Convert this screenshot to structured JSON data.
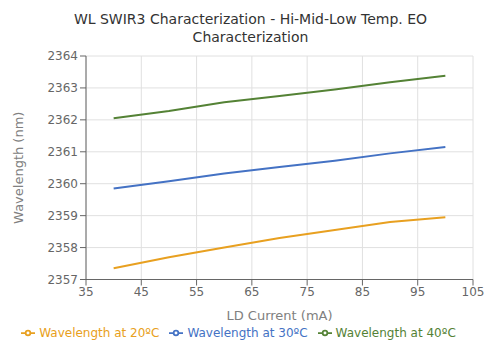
{
  "chart_data": {
    "type": "line",
    "title": "WL SWIR3 Characterization - Hi-Mid-Low Temp. EO\nCharacterization",
    "x_label": "LD Current (mA)",
    "y_label": "Wavelength (nm)",
    "x": [
      40,
      50,
      60,
      70,
      80,
      90,
      100
    ],
    "series": [
      {
        "name": "Wavelength at 20ºC",
        "color": "#E8A020",
        "values": [
          2357.35,
          2357.7,
          2358.0,
          2358.3,
          2358.55,
          2358.8,
          2358.95
        ]
      },
      {
        "name": "Wavelength at 30ºC",
        "color": "#4472C4",
        "values": [
          2359.85,
          2360.08,
          2360.32,
          2360.52,
          2360.72,
          2360.95,
          2361.15
        ]
      },
      {
        "name": "Wavelength at 40ºC",
        "color": "#548235",
        "values": [
          2362.05,
          2362.28,
          2362.55,
          2362.75,
          2362.95,
          2363.18,
          2363.38
        ]
      }
    ],
    "xlim": [
      35,
      105
    ],
    "ylim": [
      2357,
      2364
    ],
    "xticks": [
      35,
      45,
      55,
      65,
      75,
      85,
      95,
      105
    ],
    "yticks": [
      2357,
      2358,
      2359,
      2360,
      2361,
      2362,
      2363,
      2364
    ],
    "grid": true,
    "legend": "bottom"
  }
}
